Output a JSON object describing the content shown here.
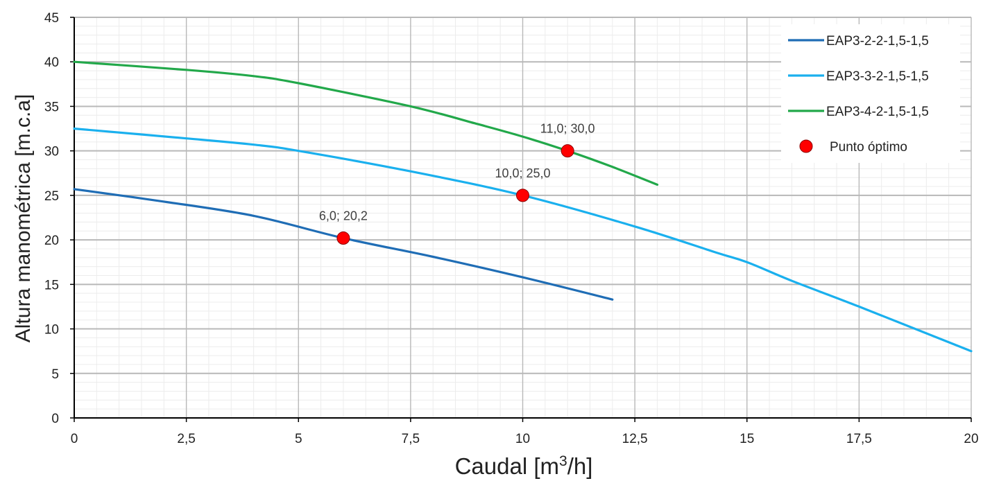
{
  "chart_data": {
    "type": "line",
    "title": "",
    "xlabel": "Caudal [m3/h]",
    "xlabel_main": "Caudal [m",
    "xlabel_sup": "3",
    "xlabel_tail": "/h]",
    "ylabel": "Altura manométrica [m.c.a]",
    "xlim": [
      0,
      20
    ],
    "ylim": [
      0,
      45
    ],
    "x_ticks": [
      0,
      2.5,
      5,
      7.5,
      10,
      12.5,
      15,
      17.5,
      20
    ],
    "x_tick_labels": [
      "0",
      "2,5",
      "5",
      "7,5",
      "10",
      "12,5",
      "15",
      "17,5",
      "20"
    ],
    "y_ticks": [
      0,
      5,
      10,
      15,
      20,
      25,
      30,
      35,
      40,
      45
    ],
    "y_tick_labels": [
      "0",
      "5",
      "10",
      "15",
      "20",
      "25",
      "30",
      "35",
      "40",
      "45"
    ],
    "grid": true,
    "legend_position": "top-right",
    "series": [
      {
        "name": "EAP3-2-2-1,5-1,5",
        "color": "#1f6db5",
        "points": [
          [
            0,
            25.7
          ],
          [
            2,
            24.3
          ],
          [
            4,
            22.7
          ],
          [
            6,
            20.2
          ],
          [
            8,
            18.1
          ],
          [
            10,
            15.8
          ],
          [
            12,
            13.3
          ]
        ]
      },
      {
        "name": "EAP3-3-2-1,5-1,5",
        "color": "#1ab0ee",
        "points": [
          [
            0,
            32.5
          ],
          [
            2.5,
            31.4
          ],
          [
            4,
            30.7
          ],
          [
            5,
            30.0
          ],
          [
            7.5,
            27.7
          ],
          [
            10,
            25.0
          ],
          [
            12.5,
            21.5
          ],
          [
            14.3,
            18.6
          ],
          [
            15,
            17.5
          ],
          [
            16,
            15.4
          ],
          [
            17.5,
            12.5
          ],
          [
            20,
            7.5
          ]
        ]
      },
      {
        "name": "EAP3-4-2-1,5-1,5",
        "color": "#22a84a",
        "points": [
          [
            0,
            40.0
          ],
          [
            2.5,
            39.1
          ],
          [
            4,
            38.4
          ],
          [
            5,
            37.6
          ],
          [
            7.5,
            35.0
          ],
          [
            9,
            33.0
          ],
          [
            10,
            31.6
          ],
          [
            11,
            30.0
          ],
          [
            12,
            28.2
          ],
          [
            13,
            26.2
          ]
        ]
      }
    ],
    "optimum_points": {
      "name": "Punto óptimo",
      "color": "#ff0000",
      "points": [
        {
          "x": 6,
          "y": 20.2,
          "label": "6,0; 20,2"
        },
        {
          "x": 10,
          "y": 25.0,
          "label": "10,0; 25,0"
        },
        {
          "x": 11,
          "y": 30.0,
          "label": "11,0; 30,0"
        }
      ]
    }
  }
}
